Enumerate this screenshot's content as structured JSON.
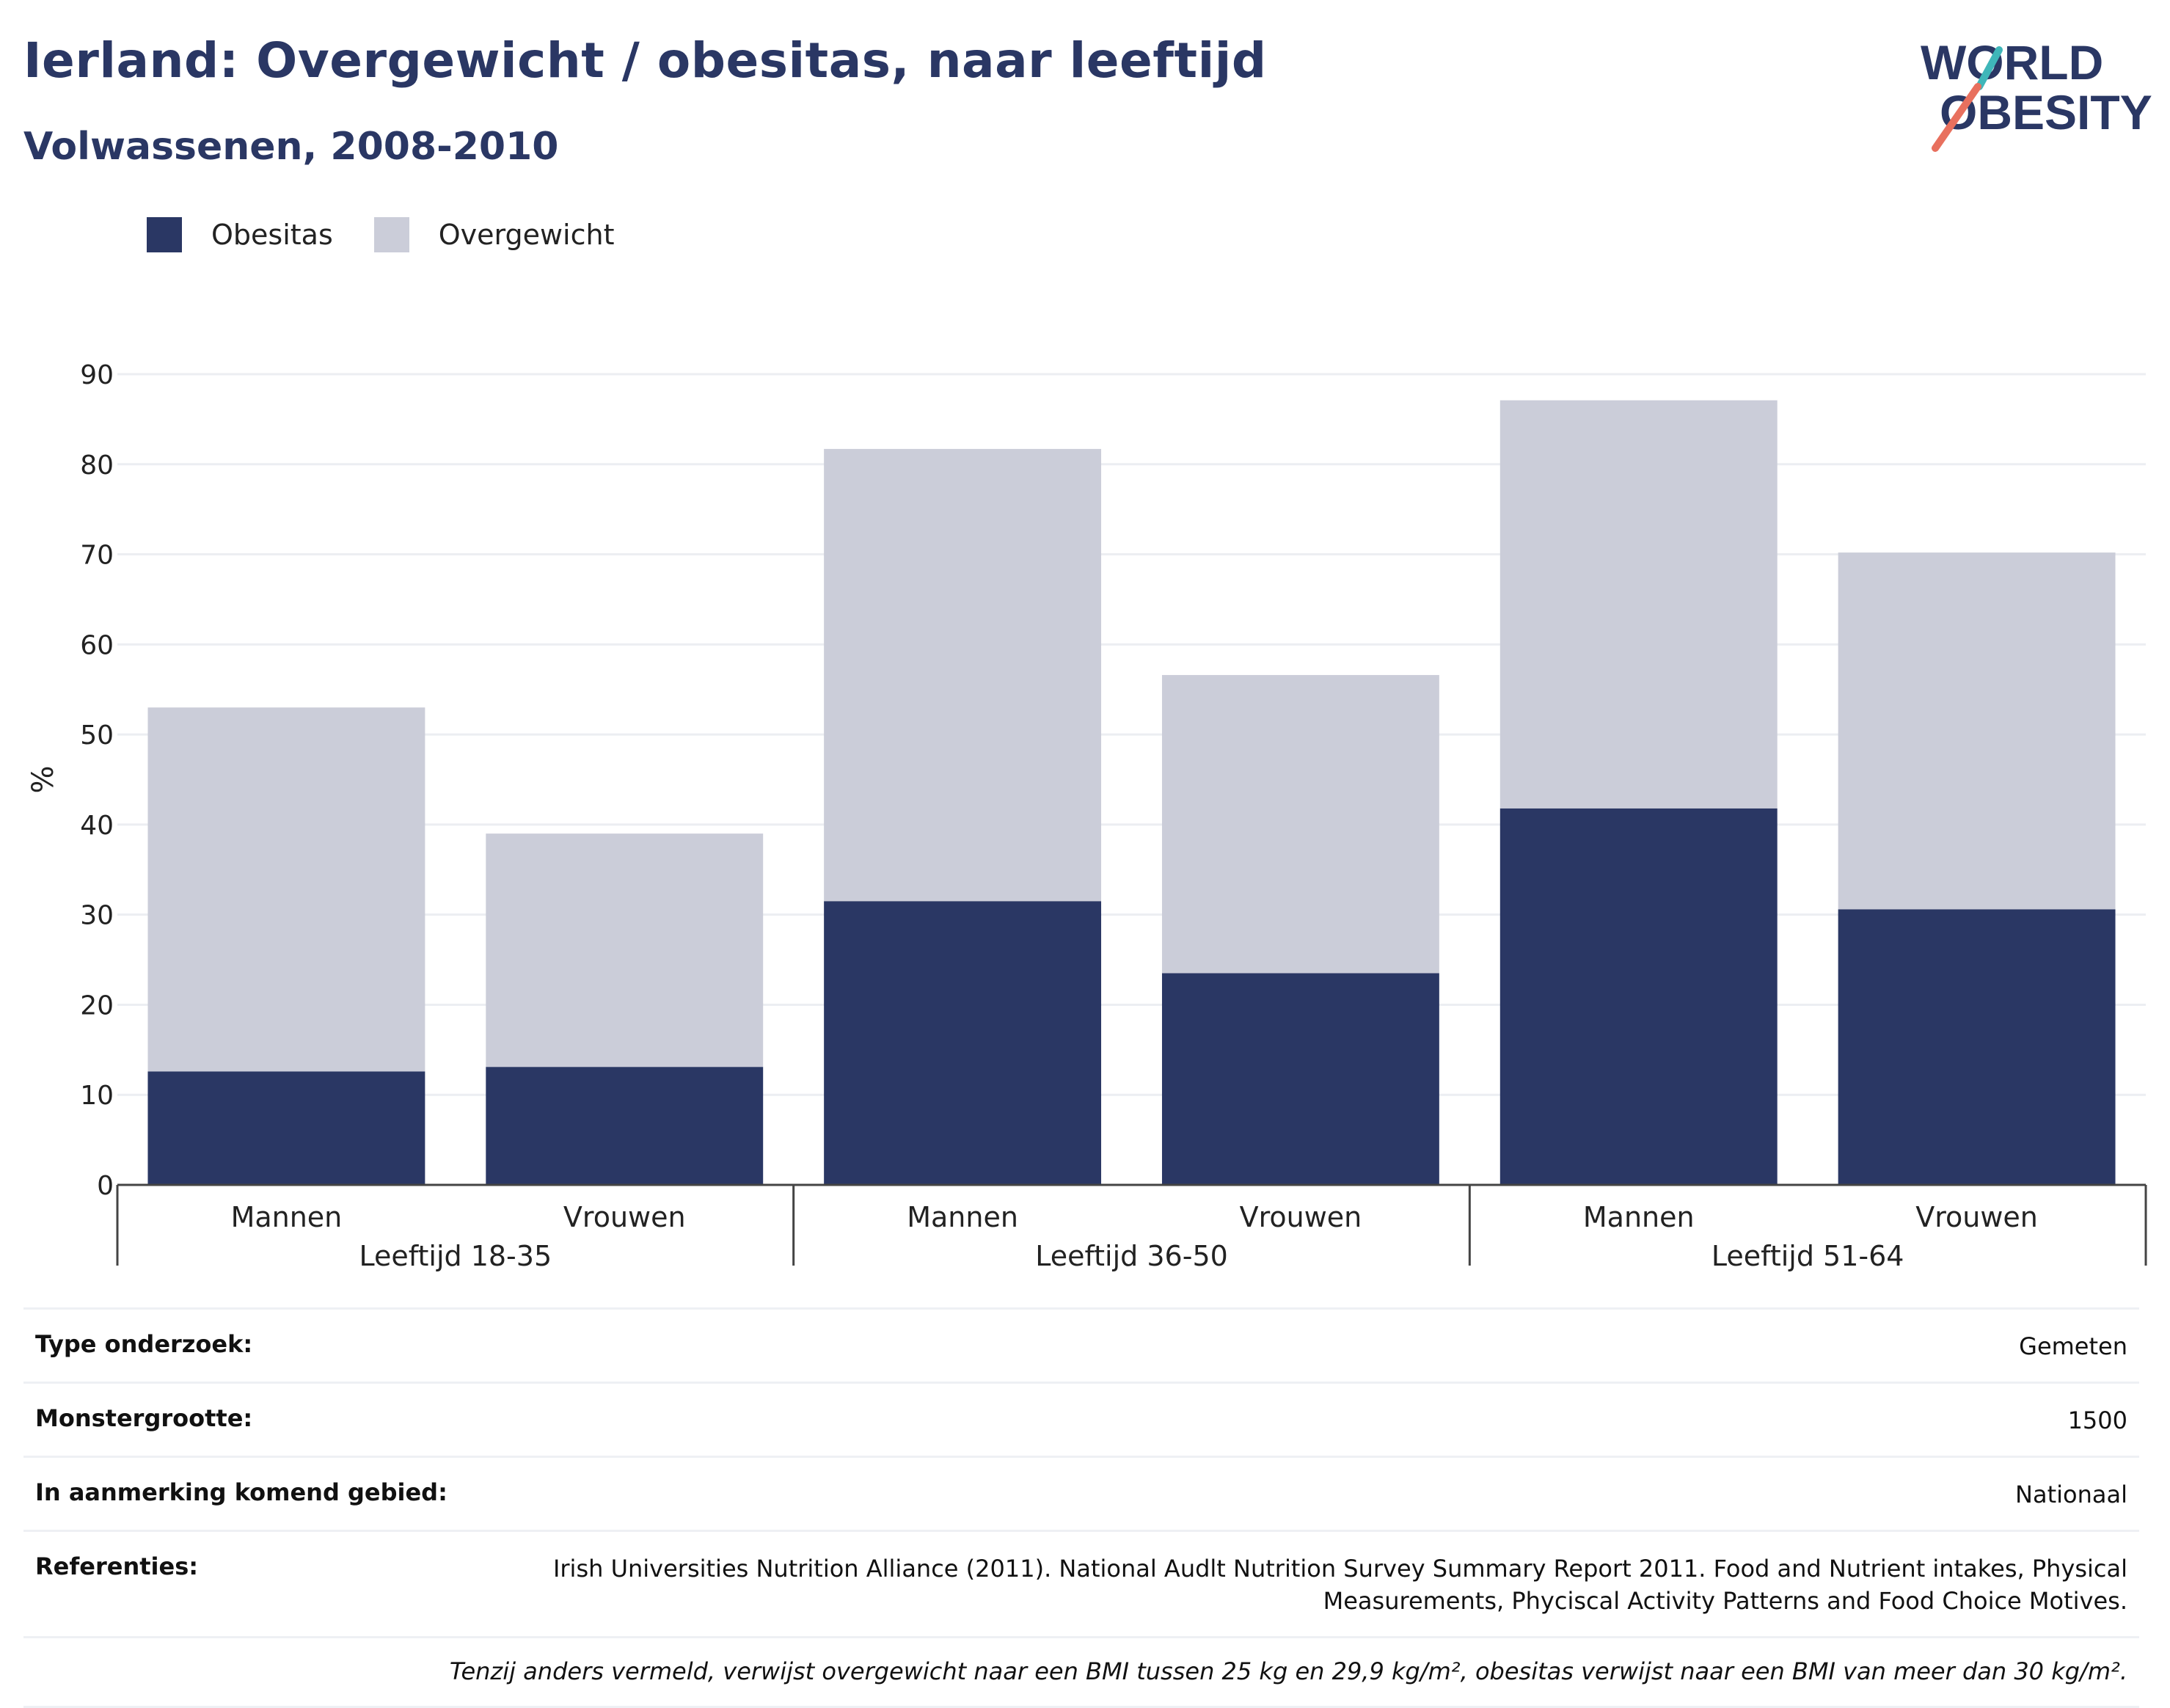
{
  "header": {
    "title": "Ierland: Overgewicht / obesitas, naar leeftijd",
    "subtitle": "Volwassenen, 2008-2010"
  },
  "logo": {
    "line1": "WORLD",
    "line2": "OBESITY"
  },
  "colors": {
    "obesitas": "#2a3764",
    "overgewicht": "#cbcdd9",
    "accent_teal": "#3fb6b9",
    "accent_coral": "#e8705e"
  },
  "chart_data": {
    "type": "bar",
    "stacked": true,
    "ylabel": "%",
    "ylim": [
      0,
      90
    ],
    "yticks": [
      0,
      10,
      20,
      30,
      40,
      50,
      60,
      70,
      80,
      90
    ],
    "grid": true,
    "legend_position": "top-left",
    "groups": [
      "Leeftijd 18-35",
      "Leeftijd 36-50",
      "Leeftijd 51-64"
    ],
    "categories": [
      "Mannen",
      "Vrouwen",
      "Mannen",
      "Vrouwen",
      "Mannen",
      "Vrouwen"
    ],
    "series": [
      {
        "name": "Obesitas",
        "values": [
          12.6,
          13.1,
          31.5,
          23.5,
          41.8,
          30.6
        ]
      },
      {
        "name": "Overgewicht",
        "values": [
          40.4,
          25.9,
          50.2,
          33.1,
          45.3,
          39.6
        ]
      }
    ]
  },
  "info": {
    "rows": [
      {
        "label": "Type onderzoek:",
        "value": "Gemeten"
      },
      {
        "label": "Monstergrootte:",
        "value": "1500"
      },
      {
        "label": "In aanmerking komend gebied:",
        "value": "Nationaal"
      },
      {
        "label": "Referenties:",
        "value": "Irish Universities Nutrition Alliance (2011). National Audlt Nutrition Survey Summary Report 2011. Food and Nutrient intakes, Physical Measurements, Phyciscal Activity Patterns and Food Choice Motives."
      }
    ],
    "footnote": "Tenzij anders vermeld, verwijst overgewicht naar een BMI tussen 25 kg en 29,9 kg/m², obesitas verwijst naar een BMI van meer dan 30 kg/m²."
  }
}
